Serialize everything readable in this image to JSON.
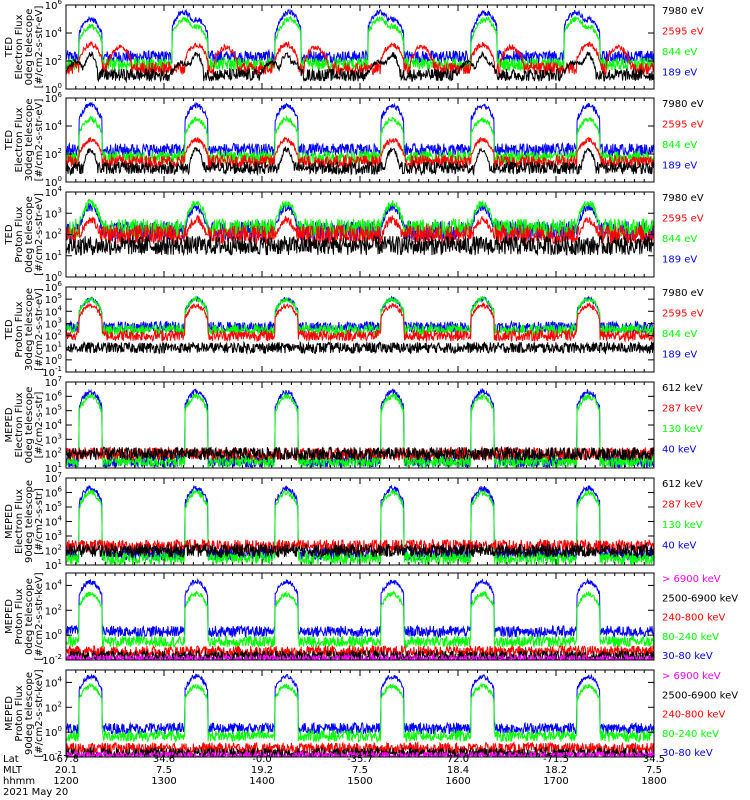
{
  "colors": {
    "blue": "#0000ff",
    "red": "#ff0000",
    "green": "#00ff00",
    "black": "#000000",
    "magenta": "#ff00ff"
  },
  "chart_data": {
    "type": "line",
    "x_axis": {
      "unit": "hhmm",
      "range": [
        1200,
        1800
      ],
      "rows": [
        {
          "label": "Lat",
          "values": [
            "-67.8",
            "34.6",
            "-0.0",
            "-35.7",
            "72.0",
            "-71.5",
            "34.5"
          ]
        },
        {
          "label": "MLT",
          "values": [
            "20.1",
            "7.5",
            "19.2",
            "7.5",
            "18.4",
            "18.2",
            "7.5"
          ]
        },
        {
          "label": "hhmm",
          "values": [
            "1200",
            "1300",
            "1400",
            "1500",
            "1600",
            "1700",
            "1800"
          ]
        }
      ],
      "date": "2021 May 20"
    },
    "panels": [
      {
        "ylabel": [
          "TED",
          "Electron Flux",
          "0deg telescope",
          "[#/cm2-s-str-eV]"
        ],
        "y_scale": "log",
        "ylim": [
          1,
          1000000
        ],
        "y_ticks": [
          "10^0",
          "10^2",
          "10^4",
          "10^6"
        ],
        "series": [
          {
            "name": "7980 eV",
            "color": "black",
            "base": 10,
            "bursts": [
              [
                1210,
                2,
                80
              ],
              [
                1225,
                1.2,
                300
              ],
              [
                1325,
                1.2,
                80
              ]
            ]
          },
          {
            "name": "2595 eV",
            "color": "red",
            "base": 30,
            "bursts": [
              [
                1225,
                2,
                1500
              ],
              [
                1255,
                2,
                1000
              ]
            ]
          },
          {
            "name": "844 eV",
            "color": "green",
            "base": 60,
            "bursts": [
              [
                1225,
                2,
                30000
              ],
              [
                1320,
                2,
                100000
              ]
            ]
          },
          {
            "name": "189 eV",
            "color": "blue",
            "base": 200,
            "bursts": [
              [
                1225,
                2,
                100000
              ],
              [
                1320,
                2,
                300000
              ]
            ]
          }
        ]
      },
      {
        "ylabel": [
          "TED",
          "Electron Flux",
          "30deg telescope",
          "[#/cm2-s-str-eV]"
        ],
        "y_scale": "log",
        "ylim": [
          1,
          1000000
        ],
        "y_ticks": [
          "10^0",
          "10^2",
          "10^4",
          "10^6"
        ],
        "series": [
          {
            "name": "7980 eV",
            "color": "black",
            "base": 10,
            "bursts": [
              [
                1225,
                1.2,
                200
              ]
            ]
          },
          {
            "name": "2595 eV",
            "color": "red",
            "base": 30,
            "bursts": [
              [
                1225,
                2,
                1000
              ]
            ]
          },
          {
            "name": "844 eV",
            "color": "green",
            "base": 60,
            "bursts": [
              [
                1225,
                2,
                30000
              ]
            ]
          },
          {
            "name": "189 eV",
            "color": "blue",
            "base": 200,
            "bursts": [
              [
                1225,
                2,
                300000
              ]
            ]
          }
        ]
      },
      {
        "ylabel": [
          "TED",
          "Proton Flux",
          "0deg telescope",
          "[#/cm2-s-str-eV]"
        ],
        "y_scale": "log",
        "ylim": [
          1,
          10000
        ],
        "y_ticks": [
          "10^0",
          "10^1",
          "10^2",
          "10^3",
          "10^4"
        ],
        "series": [
          {
            "name": "7980 eV",
            "color": "black",
            "base": 30,
            "bursts": []
          },
          {
            "name": "2595 eV",
            "color": "red",
            "base": 100,
            "bursts": [
              [
                1225,
                2,
                500
              ]
            ]
          },
          {
            "name": "844 eV",
            "color": "green",
            "base": 200,
            "bursts": [
              [
                1225,
                2,
                3000
              ]
            ]
          },
          {
            "name": "189 eV",
            "color": "blue",
            "base": 150,
            "bursts": [
              [
                1225,
                2,
                2000
              ]
            ]
          }
        ]
      },
      {
        "ylabel": [
          "TED",
          "Proton Flux",
          "30deg telescope",
          "[#/cm2-s-str-eV]"
        ],
        "y_scale": "log",
        "ylim": [
          0.1,
          1000000
        ],
        "y_ticks": [
          "10^-1",
          "10^0",
          "10^1",
          "10^2",
          "10^3",
          "10^4",
          "10^5",
          "10^6"
        ],
        "series": [
          {
            "name": "7980 eV",
            "color": "black",
            "base": 10,
            "bursts": []
          },
          {
            "name": "2595 eV",
            "color": "red",
            "base": 100,
            "bursts": [
              [
                1225,
                2,
                30000
              ]
            ]
          },
          {
            "name": "844 eV",
            "color": "green",
            "base": 300,
            "bursts": [
              [
                1225,
                2,
                100000
              ]
            ]
          },
          {
            "name": "189 eV",
            "color": "blue",
            "base": 500,
            "bursts": [
              [
                1225,
                2,
                100000
              ]
            ]
          }
        ]
      },
      {
        "ylabel": [
          "MEPED",
          "Electron Flux",
          "0deg telescope",
          "[#/cm2-s-str]"
        ],
        "y_scale": "log",
        "ylim": [
          10,
          10000000
        ],
        "y_ticks": [
          "10^1",
          "10^2",
          "10^3",
          "10^4",
          "10^5",
          "10^6",
          "10^7"
        ],
        "series": [
          {
            "name": "612 keV",
            "color": "black",
            "base": 100,
            "bursts": []
          },
          {
            "name": "287 keV",
            "color": "red",
            "base": 100,
            "bursts": []
          },
          {
            "name": "130 keV",
            "color": "green",
            "base": 30,
            "bursts": [
              [
                1225,
                2,
                1000000
              ]
            ]
          },
          {
            "name": "40 keV",
            "color": "blue",
            "base": 30,
            "bursts": [
              [
                1225,
                2,
                2000000
              ]
            ]
          }
        ]
      },
      {
        "ylabel": [
          "MEPED",
          "Electron Flux",
          "90deg telescope",
          "[#/cm2-s-str]"
        ],
        "y_scale": "log",
        "ylim": [
          10,
          10000000
        ],
        "y_ticks": [
          "10^1",
          "10^2",
          "10^3",
          "10^4",
          "10^5",
          "10^6",
          "10^7"
        ],
        "series": [
          {
            "name": "612 keV",
            "color": "black",
            "base": 100,
            "bursts": []
          },
          {
            "name": "287 keV",
            "color": "red",
            "base": 200,
            "bursts": []
          },
          {
            "name": "130 keV",
            "color": "green",
            "base": 30,
            "bursts": [
              [
                1225,
                2,
                1000000
              ]
            ]
          },
          {
            "name": "40 keV",
            "color": "blue",
            "base": 60,
            "bursts": [
              [
                1225,
                2,
                2000000
              ]
            ]
          }
        ]
      },
      {
        "ylabel": [
          "MEPED",
          "Proton Flux",
          "0deg telescope",
          "[#/cm2-s-str-keV]"
        ],
        "y_scale": "log",
        "ylim": [
          0.01,
          100000
        ],
        "y_ticks": [
          "10^-2",
          "10^0",
          "10^2",
          "10^4"
        ],
        "series": [
          {
            "name": "> 6900 keV",
            "color": "magenta",
            "base": 0.01,
            "bursts": []
          },
          {
            "name": "2500-6900 keV",
            "color": "black",
            "base": 0.02,
            "bursts": []
          },
          {
            "name": "240-800 keV",
            "color": "red",
            "base": 0.05,
            "bursts": []
          },
          {
            "name": "80-240 keV",
            "color": "green",
            "base": 0.3,
            "bursts": [
              [
                1225,
                2,
                2000
              ]
            ]
          },
          {
            "name": "30-80 keV",
            "color": "blue",
            "base": 2,
            "bursts": [
              [
                1225,
                2,
                20000
              ]
            ]
          }
        ]
      },
      {
        "ylabel": [
          "MEPED",
          "Proton Flux",
          "90deg telescope",
          "[#/cm2-s-str-keV]"
        ],
        "y_scale": "log",
        "ylim": [
          0.01,
          100000
        ],
        "y_ticks": [
          "10^-2",
          "10^0",
          "10^2",
          "10^4"
        ],
        "series": [
          {
            "name": "> 6900 keV",
            "color": "magenta",
            "base": 0.01,
            "bursts": []
          },
          {
            "name": "2500-6900 keV",
            "color": "black",
            "base": 0.02,
            "bursts": []
          },
          {
            "name": "240-800 keV",
            "color": "red",
            "base": 0.05,
            "bursts": []
          },
          {
            "name": "80-240 keV",
            "color": "green",
            "base": 0.5,
            "bursts": [
              [
                1225,
                2,
                5000
              ]
            ]
          },
          {
            "name": "30-80 keV",
            "color": "blue",
            "base": 2,
            "bursts": [
              [
                1225,
                2,
                30000
              ]
            ]
          }
        ]
      }
    ]
  }
}
